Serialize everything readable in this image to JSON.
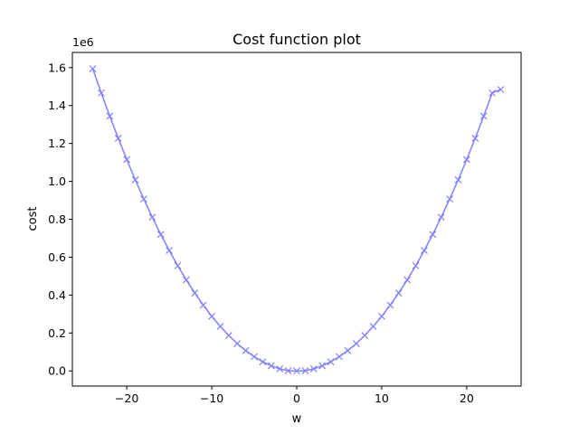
{
  "chart_data": {
    "type": "line",
    "title": "Cost function plot",
    "xlabel": "w",
    "ylabel": "cost",
    "y_offset_label": "1e6",
    "xlim": [
      -26.4,
      26.4
    ],
    "ylim": [
      -0.08,
      1.68
    ],
    "x_ticks": [
      -20,
      -10,
      0,
      10,
      20
    ],
    "x_tick_labels": [
      "−20",
      "−10",
      "0",
      "10",
      "20"
    ],
    "y_ticks": [
      0.0,
      0.2,
      0.4,
      0.6,
      0.8,
      1.0,
      1.2,
      1.4,
      1.6
    ],
    "y_tick_labels": [
      "0.0",
      "0.2",
      "0.4",
      "0.6",
      "0.8",
      "1.0",
      "1.2",
      "1.4",
      "1.6"
    ],
    "grid": false,
    "legend": "none",
    "series": [
      {
        "color": "#7f7fff",
        "marker": "x",
        "x": [
          -24,
          -23,
          -22,
          -21,
          -20,
          -19,
          -18,
          -17,
          -16,
          -15,
          -14,
          -13,
          -12,
          -11,
          -10,
          -9,
          -8,
          -7,
          -6,
          -5,
          -4,
          -3,
          -2,
          -1,
          0,
          1,
          2,
          3,
          4,
          5,
          6,
          7,
          8,
          9,
          10,
          11,
          12,
          13,
          14,
          15,
          16,
          17,
          18,
          19,
          20,
          21,
          22,
          23,
          24
        ],
        "y": [
          1.594,
          1.466,
          1.344,
          1.227,
          1.115,
          1.008,
          0.907,
          0.811,
          0.72,
          0.635,
          0.555,
          0.48,
          0.411,
          0.347,
          0.288,
          0.235,
          0.187,
          0.144,
          0.107,
          0.075,
          0.048,
          0.027,
          0.011,
          0.001,
          0.0,
          0.001,
          0.011,
          0.027,
          0.048,
          0.075,
          0.107,
          0.144,
          0.187,
          0.235,
          0.288,
          0.347,
          0.411,
          0.48,
          0.555,
          0.635,
          0.72,
          0.811,
          0.907,
          1.008,
          1.115,
          1.227,
          1.344,
          1.466,
          1.485
        ]
      }
    ]
  }
}
